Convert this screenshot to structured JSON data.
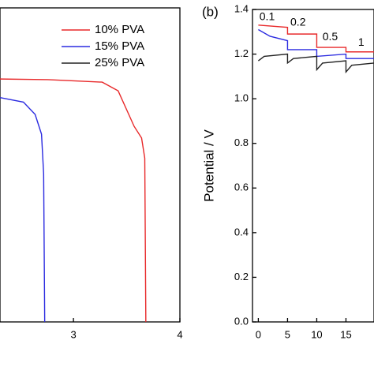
{
  "chart_data": [
    {
      "type": "line",
      "xlim": [
        2.31,
        4
      ],
      "xticks": [
        3,
        4
      ],
      "ylim": [
        0,
        1.4
      ],
      "series": [
        {
          "name": "10% PVA",
          "color": "#e8292a",
          "x": [
            2.31,
            2.76,
            3.27,
            3.42,
            3.57,
            3.64,
            3.67,
            3.68
          ],
          "values": [
            1.083,
            1.08,
            1.069,
            1.03,
            0.872,
            0.82,
            0.73,
            0
          ]
        },
        {
          "name": "15% PVA",
          "color": "#2b2be0",
          "x": [
            2.31,
            2.53,
            2.64,
            2.7,
            2.72,
            2.73
          ],
          "values": [
            1.0,
            0.98,
            0.925,
            0.837,
            0.66,
            0
          ]
        },
        {
          "name": "25% PVA",
          "color": "#222222",
          "x": [],
          "values": []
        }
      ]
    },
    {
      "type": "line",
      "panel_label": "(b)",
      "y_label": "Potential / V",
      "xlim": [
        -1,
        19.8
      ],
      "xticks": [
        0,
        5,
        10,
        15
      ],
      "ylim": [
        0,
        1.4
      ],
      "yticks": [
        {
          "value": 0,
          "label": "0.0"
        },
        0.2,
        0.4,
        0.6,
        0.8,
        {
          "value": 1,
          "label": "1.0"
        },
        1.2,
        1.4
      ],
      "annotations": [
        "0.1",
        "0.2",
        "0.5",
        "1"
      ],
      "series": [
        {
          "name": "10% PVA",
          "color": "#e8292a",
          "x": [
            0,
            5,
            5,
            10,
            10,
            15,
            15,
            19.8
          ],
          "values": [
            1.33,
            1.32,
            1.29,
            1.29,
            1.23,
            1.23,
            1.21,
            1.21
          ]
        },
        {
          "name": "15% PVA",
          "color": "#2b2be0",
          "x": [
            0,
            2,
            5,
            5,
            10,
            10,
            15,
            15,
            19.8
          ],
          "values": [
            1.31,
            1.28,
            1.26,
            1.22,
            1.22,
            1.19,
            1.2,
            1.18,
            1.18
          ]
        },
        {
          "name": "25% PVA",
          "color": "#222222",
          "x": [
            0,
            1,
            5,
            5,
            6,
            10,
            10,
            11,
            15,
            15,
            16,
            19.8
          ],
          "values": [
            1.17,
            1.19,
            1.2,
            1.16,
            1.18,
            1.19,
            1.13,
            1.16,
            1.17,
            1.12,
            1.15,
            1.16
          ]
        }
      ]
    }
  ]
}
